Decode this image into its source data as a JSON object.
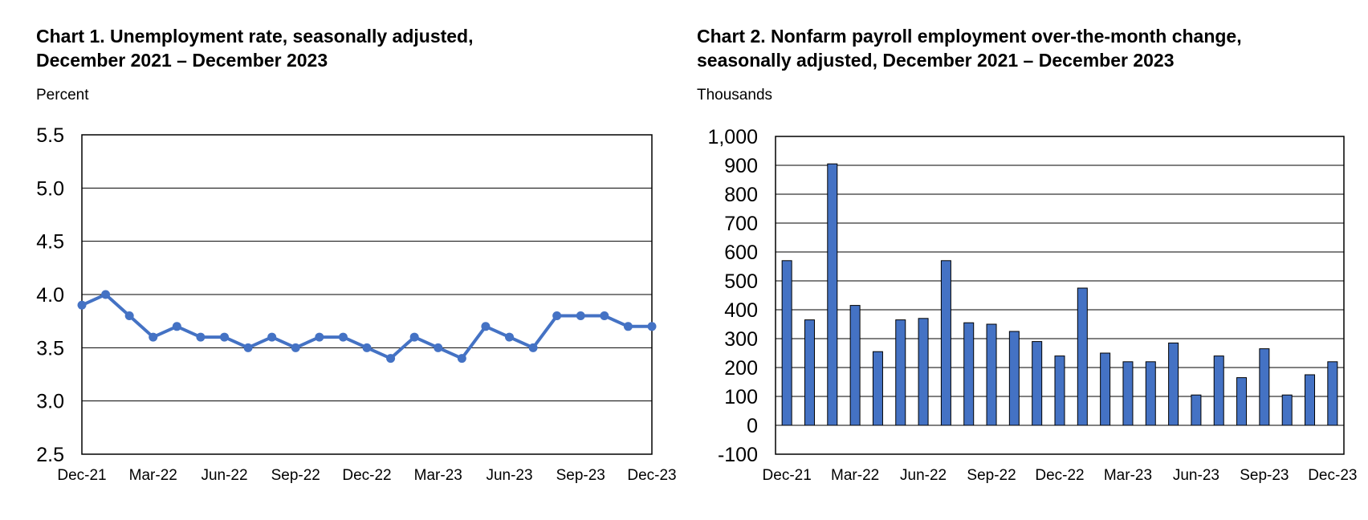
{
  "chart_data": [
    {
      "type": "line",
      "title": "Chart 1. Unemployment rate, seasonally adjusted, December 2021 – December 2023",
      "title_lines": [
        "Chart 1. Unemployment rate, seasonally adjusted,",
        "December 2021 – December 2023"
      ],
      "ylabel": "Percent",
      "xlabel": "",
      "ylim": [
        2.5,
        5.5
      ],
      "yticks": [
        "5.5",
        "5.0",
        "4.5",
        "4.0",
        "3.5",
        "3.0",
        "2.5"
      ],
      "yticks_values": [
        5.5,
        5.0,
        4.5,
        4.0,
        3.5,
        3.0,
        2.5
      ],
      "xtick_labels": [
        "Dec-21",
        "Mar-22",
        "Jun-22",
        "Sep-22",
        "Dec-22",
        "Mar-23",
        "Jun-23",
        "Sep-23",
        "Dec-23"
      ],
      "xtick_indices": [
        0,
        3,
        6,
        9,
        12,
        15,
        18,
        21,
        24
      ],
      "x": [
        "Dec-21",
        "Jan-22",
        "Feb-22",
        "Mar-22",
        "Apr-22",
        "May-22",
        "Jun-22",
        "Jul-22",
        "Aug-22",
        "Sep-22",
        "Oct-22",
        "Nov-22",
        "Dec-22",
        "Jan-23",
        "Feb-23",
        "Mar-23",
        "Apr-23",
        "May-23",
        "Jun-23",
        "Jul-23",
        "Aug-23",
        "Sep-23",
        "Oct-23",
        "Nov-23",
        "Dec-23"
      ],
      "series": [
        {
          "values": [
            3.9,
            4.0,
            3.8,
            3.6,
            3.7,
            3.6,
            3.6,
            3.5,
            3.6,
            3.5,
            3.6,
            3.6,
            3.5,
            3.4,
            3.6,
            3.5,
            3.4,
            3.7,
            3.6,
            3.5,
            3.8,
            3.8,
            3.8,
            3.7,
            3.7
          ]
        }
      ],
      "grid": true,
      "color": "#4472C4"
    },
    {
      "type": "bar",
      "title": "Chart 2. Nonfarm payroll employment over-the-month change, seasonally adjusted, December 2021 – December 2023",
      "title_lines": [
        "Chart 2. Nonfarm payroll employment over-the-month change,",
        "seasonally adjusted, December 2021 – December 2023"
      ],
      "ylabel": "Thousands",
      "xlabel": "",
      "ylim": [
        -100,
        1000
      ],
      "yticks": [
        "1,000",
        "900",
        "800",
        "700",
        "600",
        "500",
        "400",
        "300",
        "200",
        "100",
        "0",
        "-100"
      ],
      "yticks_values": [
        1000,
        900,
        800,
        700,
        600,
        500,
        400,
        300,
        200,
        100,
        0,
        -100
      ],
      "xtick_labels": [
        "Dec-21",
        "Mar-22",
        "Jun-22",
        "Sep-22",
        "Dec-22",
        "Mar-23",
        "Jun-23",
        "Sep-23",
        "Dec-23"
      ],
      "xtick_indices": [
        0,
        3,
        6,
        9,
        12,
        15,
        18,
        21,
        24
      ],
      "categories": [
        "Dec-21",
        "Jan-22",
        "Feb-22",
        "Mar-22",
        "Apr-22",
        "May-22",
        "Jun-22",
        "Jul-22",
        "Aug-22",
        "Sep-22",
        "Oct-22",
        "Nov-22",
        "Dec-22",
        "Jan-23",
        "Feb-23",
        "Mar-23",
        "Apr-23",
        "May-23",
        "Jun-23",
        "Jul-23",
        "Aug-23",
        "Sep-23",
        "Oct-23",
        "Nov-23",
        "Dec-23"
      ],
      "values": [
        570,
        365,
        905,
        415,
        255,
        365,
        370,
        570,
        355,
        350,
        325,
        290,
        240,
        475,
        250,
        220,
        220,
        285,
        105,
        240,
        165,
        265,
        105,
        175,
        220
      ],
      "grid": true,
      "color": "#4472C4"
    }
  ]
}
